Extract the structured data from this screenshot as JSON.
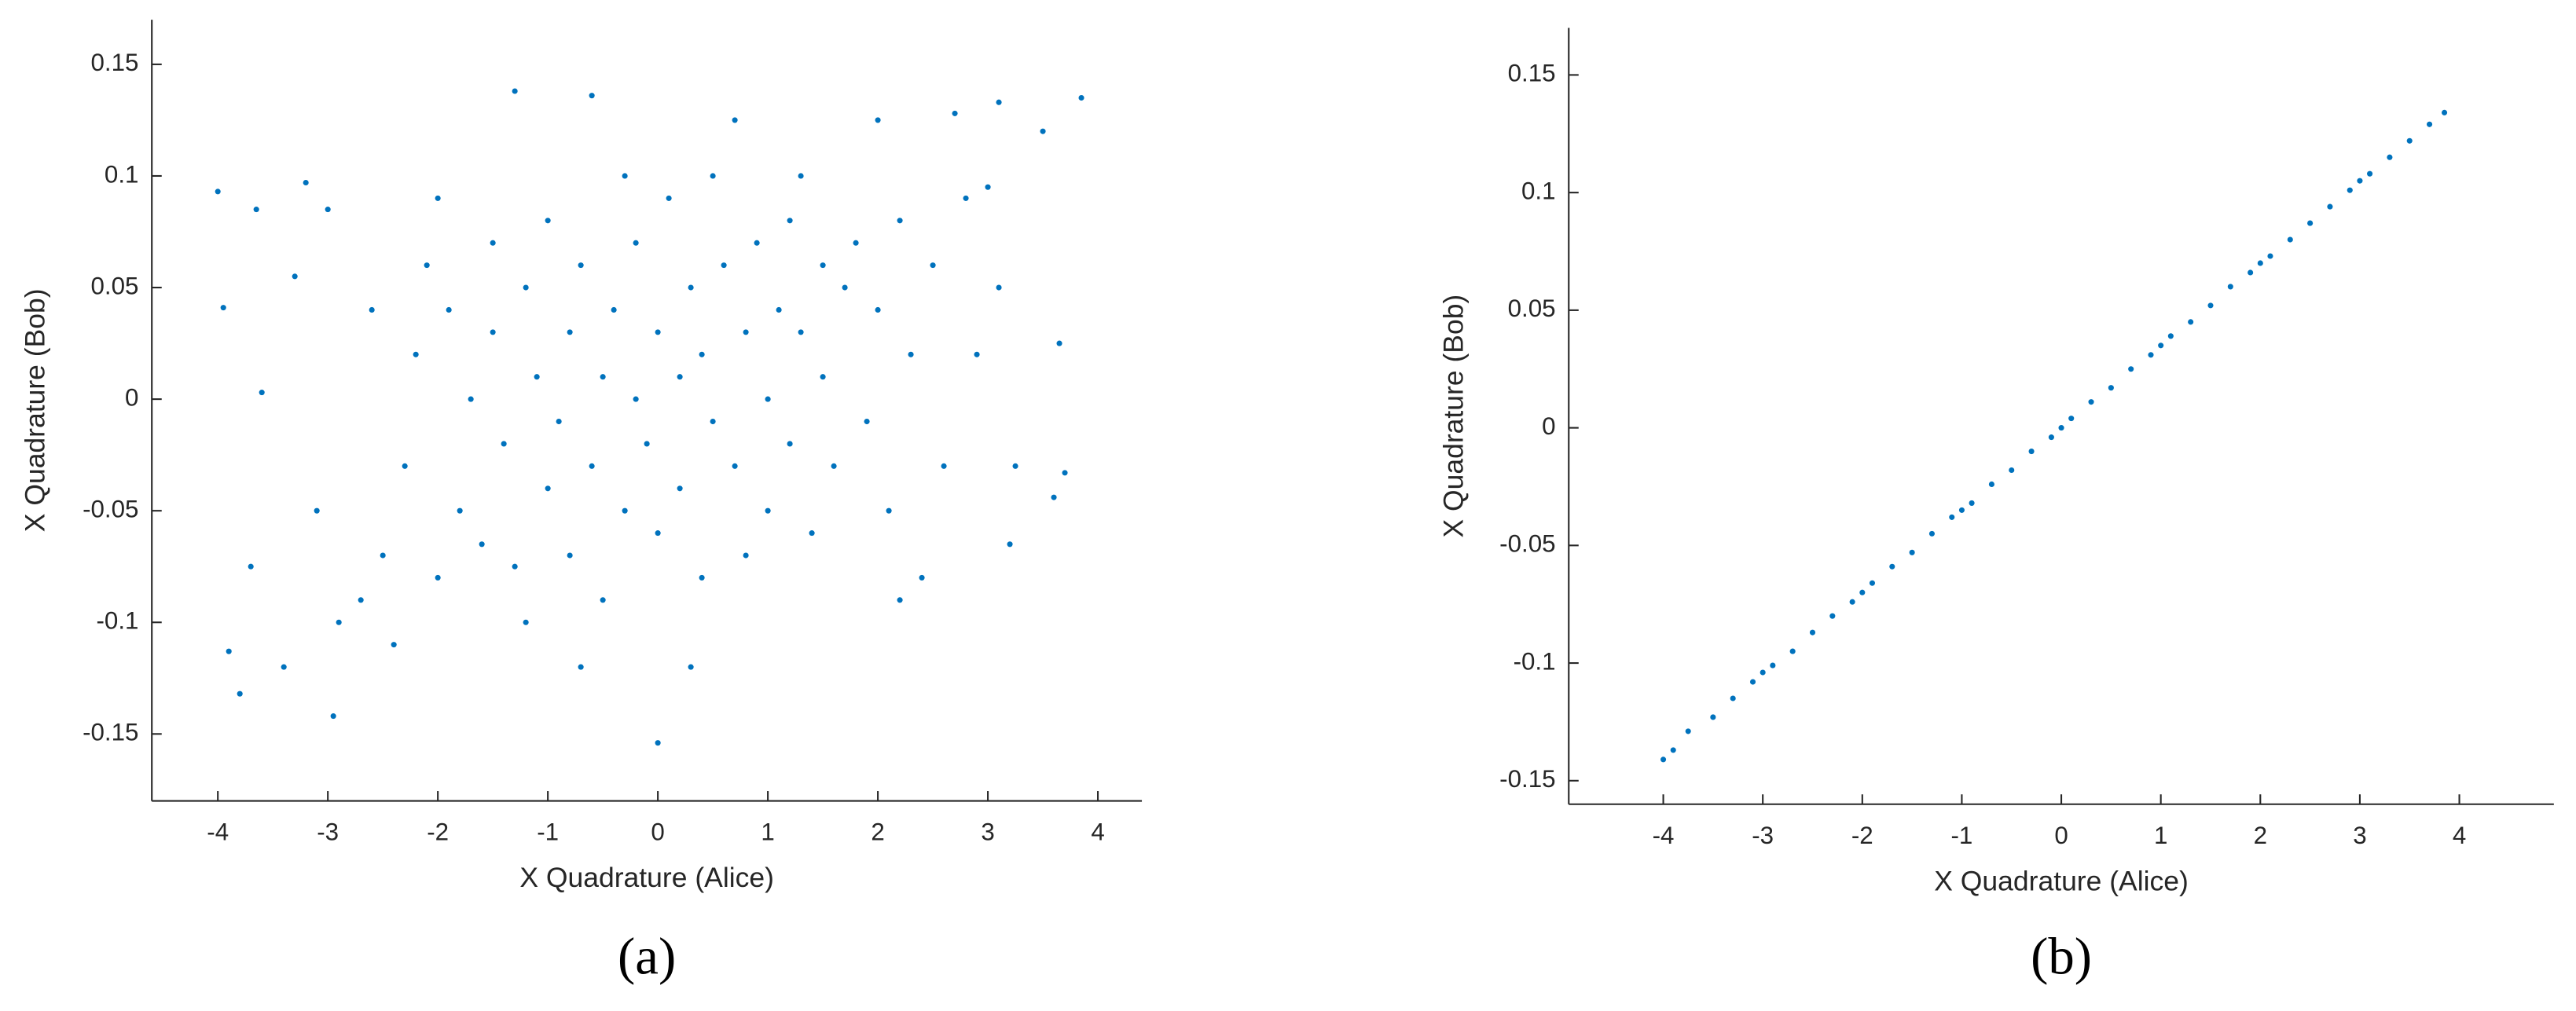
{
  "chart_data": [
    {
      "type": "scatter",
      "label": "(a)",
      "xlabel": "X Quadrature (Alice)",
      "ylabel": "X Quadrature (Bob)",
      "color": "#0072bd",
      "xlim": [
        -4.6,
        4.4
      ],
      "ylim": [
        -0.18,
        0.17
      ],
      "xticks": [
        -4,
        -3,
        -2,
        -1,
        0,
        1,
        2,
        3,
        4
      ],
      "yticks": [
        -0.15,
        -0.1,
        -0.05,
        0,
        0.05,
        0.1,
        0.15
      ],
      "x": [
        -4.0,
        -3.95,
        -3.9,
        -3.8,
        -3.65,
        -3.6,
        -3.7,
        -3.3,
        -3.2,
        -2.95,
        -3.0,
        -2.9,
        -3.4,
        -1.3,
        -0.6,
        0,
        3.85,
        3.65,
        3.7,
        3.6,
        3.1,
        3.5,
        2.7,
        2.0,
        0.7,
        3.0,
        3.2,
        3.25,
        -2.5,
        -2.3,
        -2.2,
        -2.1,
        -2.0,
        -1.9,
        -1.8,
        -1.7,
        -1.6,
        -1.5,
        -1.5,
        -1.4,
        -1.3,
        -1.2,
        -1.1,
        -1.0,
        -1.0,
        -0.9,
        -0.8,
        -0.8,
        -0.7,
        -0.6,
        -0.5,
        -0.5,
        -0.4,
        -0.3,
        -0.2,
        -0.2,
        -0.1,
        0,
        0,
        0.1,
        0.2,
        0.2,
        0.3,
        0.4,
        0.4,
        0.5,
        0.6,
        0.7,
        0.8,
        0.8,
        0.9,
        1.0,
        1.0,
        1.1,
        1.2,
        1.2,
        1.3,
        1.4,
        1.5,
        1.5,
        1.6,
        1.7,
        1.8,
        1.9,
        2.0,
        2.1,
        2.2,
        2.3,
        2.4,
        2.5,
        2.6,
        2.8,
        2.9,
        -2.7,
        -2.6,
        -2.4,
        -1.2,
        -0.3,
        0.5,
        1.3,
        -0.7,
        0.3,
        -2.0,
        2.2,
        -3.1,
        3.1
      ],
      "values": [
        0.093,
        0.041,
        -0.113,
        -0.132,
        0.085,
        0.003,
        -0.075,
        0.055,
        0.097,
        -0.142,
        0.085,
        -0.1,
        -0.12,
        0.138,
        0.136,
        -0.154,
        0.135,
        0.025,
        -0.033,
        -0.044,
        0.133,
        0.12,
        0.128,
        0.125,
        0.125,
        0.095,
        -0.065,
        -0.03,
        -0.07,
        -0.03,
        0.02,
        0.06,
        -0.08,
        0.04,
        -0.05,
        0.0,
        -0.065,
        0.07,
        0.03,
        -0.02,
        -0.075,
        0.05,
        0.01,
        -0.04,
        0.08,
        -0.01,
        0.03,
        -0.07,
        0.06,
        -0.03,
        0.01,
        -0.09,
        0.04,
        -0.05,
        0.07,
        0.0,
        -0.02,
        0.03,
        -0.06,
        0.09,
        0.01,
        -0.04,
        0.05,
        -0.08,
        0.02,
        -0.01,
        0.06,
        -0.03,
        0.03,
        -0.07,
        0.07,
        0.0,
        -0.05,
        0.04,
        0.08,
        -0.02,
        0.03,
        -0.06,
        0.06,
        0.01,
        -0.03,
        0.05,
        0.07,
        -0.01,
        0.04,
        -0.05,
        0.08,
        0.02,
        -0.08,
        0.06,
        -0.03,
        0.09,
        0.02,
        -0.09,
        0.04,
        -0.11,
        -0.1,
        0.1,
        0.1,
        0.1,
        -0.12,
        -0.12,
        0.09,
        -0.09,
        -0.05,
        0.05
      ]
    },
    {
      "type": "scatter",
      "label": "(b)",
      "xlabel": "X Quadrature (Alice)",
      "ylabel": "X Quadrature (Bob)",
      "color": "#0072bd",
      "xlim": [
        -4.95,
        4.95
      ],
      "ylim": [
        -0.16,
        0.17
      ],
      "xticks": [
        -4,
        -3,
        -2,
        -1,
        0,
        1,
        2,
        3,
        4
      ],
      "yticks": [
        -0.15,
        -0.1,
        -0.05,
        0,
        0.05,
        0.1,
        0.15
      ],
      "x": [
        -4.0,
        -3.9,
        -3.75,
        -3.5,
        -3.3,
        -3.1,
        -3.0,
        -2.9,
        -2.7,
        -2.5,
        -2.3,
        -2.1,
        -2.0,
        -1.9,
        -1.7,
        -1.5,
        -1.3,
        -1.1,
        -1.0,
        -0.9,
        -0.7,
        -0.5,
        -0.3,
        -0.1,
        0,
        0.1,
        0.3,
        0.5,
        0.7,
        0.9,
        1.0,
        1.1,
        1.3,
        1.5,
        1.7,
        1.9,
        2.0,
        2.1,
        2.3,
        2.5,
        2.7,
        2.9,
        3.0,
        3.1,
        3.3,
        3.5,
        3.7,
        3.85
      ],
      "values": [
        -0.141,
        -0.137,
        -0.129,
        -0.123,
        -0.115,
        -0.108,
        -0.104,
        -0.101,
        -0.095,
        -0.087,
        -0.08,
        -0.074,
        -0.07,
        -0.066,
        -0.059,
        -0.053,
        -0.045,
        -0.038,
        -0.035,
        -0.032,
        -0.024,
        -0.018,
        -0.01,
        -0.004,
        0,
        0.004,
        0.011,
        0.017,
        0.025,
        0.031,
        0.035,
        0.039,
        0.045,
        0.052,
        0.06,
        0.066,
        0.07,
        0.073,
        0.08,
        0.087,
        0.094,
        0.101,
        0.105,
        0.108,
        0.115,
        0.122,
        0.129,
        0.134
      ]
    }
  ]
}
